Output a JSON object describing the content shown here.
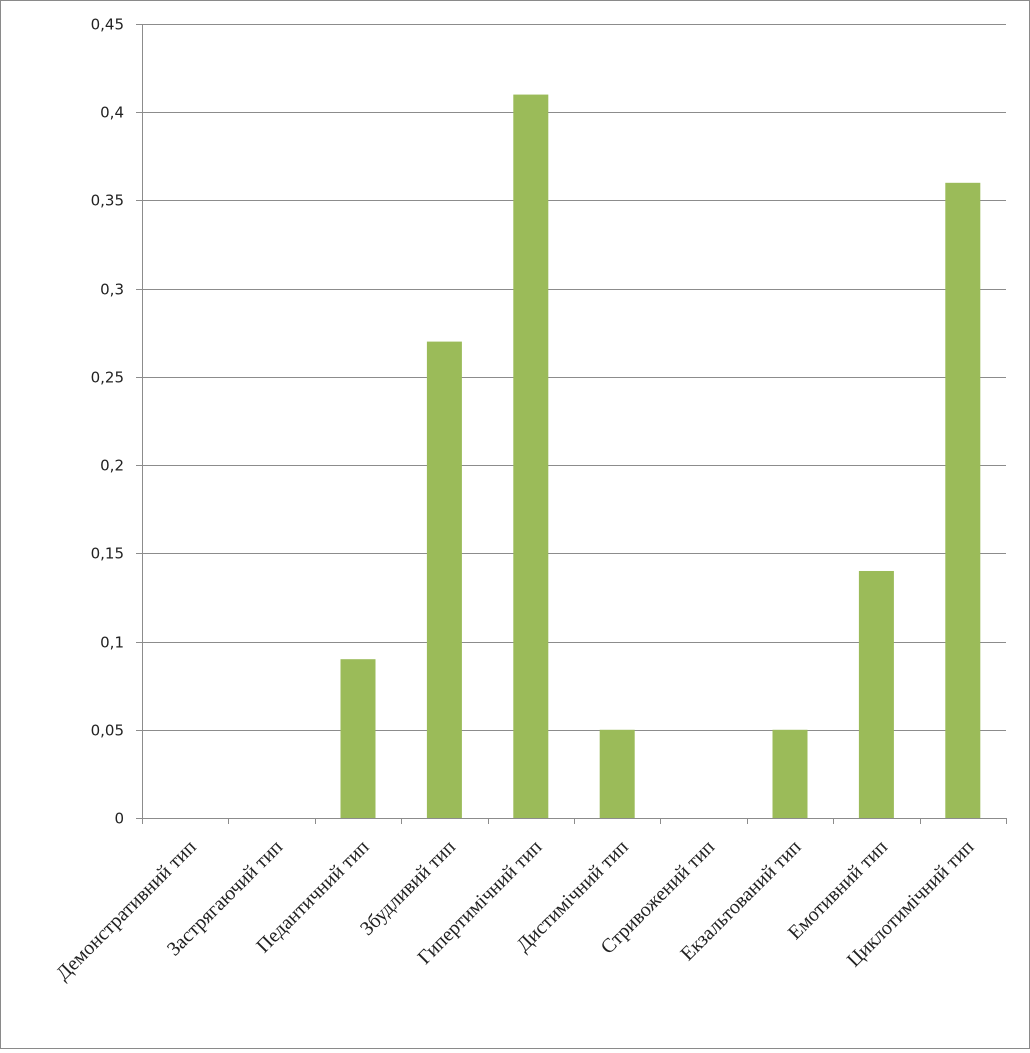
{
  "chart_data": {
    "type": "bar",
    "title": "",
    "xlabel": "",
    "ylabel": "",
    "categories": [
      "Демонстративний тип",
      "Застрягаючий тип",
      "Педантичний тип",
      "Збудливий тип",
      "Гипертимічний тип",
      "Дистимічний тип",
      "Стривожений тип",
      "Екзальтований тип",
      "Емотивний тип",
      "Циклотимічний тип"
    ],
    "values": [
      0,
      0,
      0.09,
      0.27,
      0.41,
      0.05,
      0,
      0.05,
      0.14,
      0.36
    ],
    "ylim": [
      0,
      0.45
    ],
    "yticks": [
      0,
      0.05,
      0.1,
      0.15,
      0.2,
      0.25,
      0.3,
      0.35,
      0.4,
      0.45
    ],
    "ytick_labels": [
      "0",
      "0,05",
      "0,1",
      "0,15",
      "0,2",
      "0,25",
      "0,3",
      "0,35",
      "0,4",
      "0,45"
    ],
    "grid": true,
    "legend": "none",
    "colors": {
      "bar": "#9BBB59",
      "grid": "#8c8c8c",
      "axis": "#8c8c8c"
    }
  }
}
